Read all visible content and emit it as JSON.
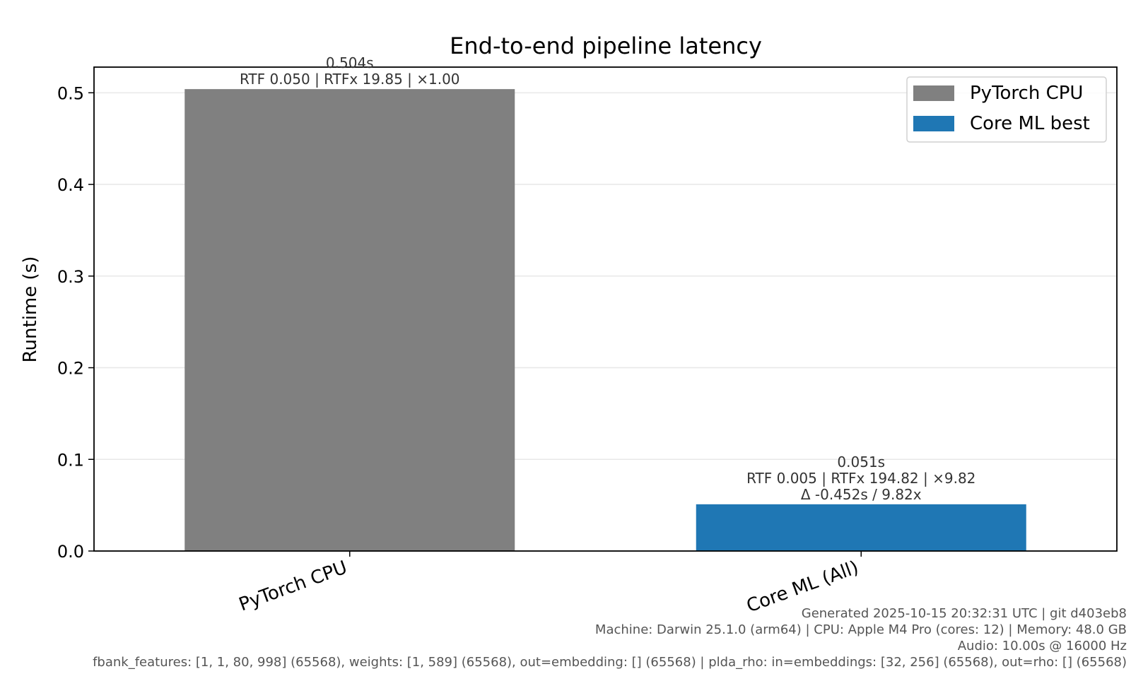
{
  "chart_data": {
    "type": "bar",
    "title": "End-to-end pipeline latency",
    "xlabel": "",
    "ylabel": "Runtime (s)",
    "ylim": [
      0,
      0.528
    ],
    "yticks": [
      "0.0",
      "0.1",
      "0.2",
      "0.3",
      "0.4",
      "0.5"
    ],
    "yticks_values": [
      0.0,
      0.1,
      0.2,
      0.3,
      0.4,
      0.5
    ],
    "grid": "y",
    "legend_position": "top-right",
    "categories": [
      "PyTorch CPU",
      "Core ML (All)"
    ],
    "values": [
      0.504,
      0.051
    ],
    "colors": [
      "#808080",
      "#1f77b4"
    ],
    "bar_labels": [
      [
        "0.504s",
        "RTF 0.050 | RTFx 19.85 | ×1.00"
      ],
      [
        "0.051s",
        "RTF 0.005 | RTFx 194.82 | ×9.82",
        "Δ -0.452s / 9.82x"
      ]
    ],
    "legend": [
      {
        "name": "PyTorch CPU",
        "color": "#808080"
      },
      {
        "name": "Core ML best",
        "color": "#1f77b4"
      }
    ]
  },
  "footer": {
    "lines": [
      "Generated 2025-10-15 20:32:31 UTC | git d403eb8",
      "Machine: Darwin 25.1.0 (arm64) | CPU: Apple M4 Pro (cores: 12) | Memory: 48.0 GB",
      "Audio: 10.00s @ 16000 Hz",
      "fbank_features: [1, 1, 80, 998] (65568), weights: [1, 589] (65568), out=embedding: [] (65568) | plda_rho: in=embeddings: [32, 256] (65568), out=rho: [] (65568)"
    ]
  }
}
